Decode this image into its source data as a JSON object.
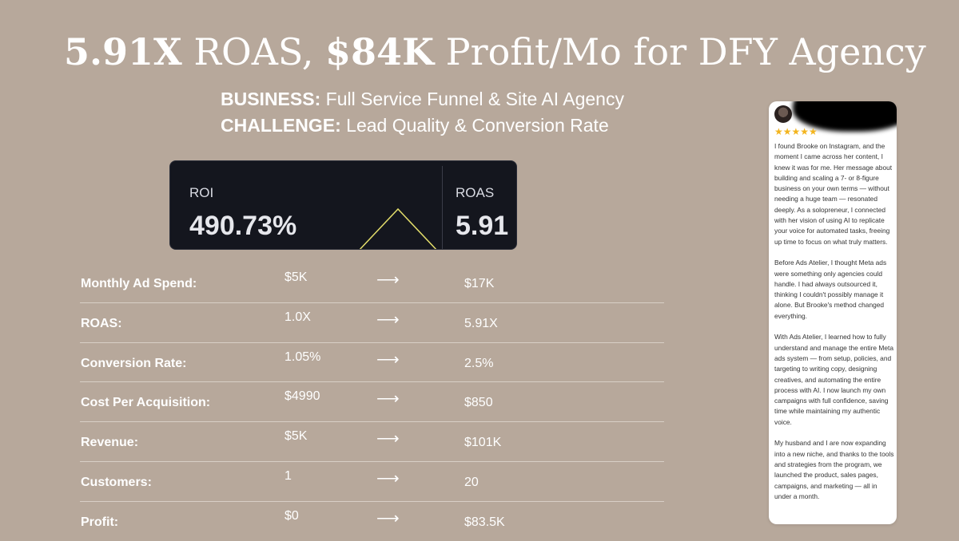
{
  "title": {
    "bold1": "5.91X",
    "mid": " ROAS, ",
    "bold2": "$84K",
    "rest": " Profit/Mo for DFY Agency"
  },
  "business": {
    "label": "BUSINESS:",
    "value": " Full Service Funnel & Site AI Agency"
  },
  "challenge": {
    "label": "CHALLENGE:",
    "value": " Lead Quality & Conversion Rate"
  },
  "metrics": {
    "roi_label": "ROI",
    "roi_value": "490.73%",
    "roas_label": "ROAS",
    "roas_value": "5.91",
    "accent_color": "#e3dd6b"
  },
  "arrow": "⟶",
  "rows": [
    {
      "label": "Monthly Ad Spend:",
      "before": "$5K",
      "after": "$17K"
    },
    {
      "label": "ROAS:",
      "before": "1.0X",
      "after": "5.91X"
    },
    {
      "label": "Conversion Rate:",
      "before": "1.05%",
      "after": "2.5%"
    },
    {
      "label": "Cost Per Acquisition:",
      "before": "$4990",
      "after": "$850"
    },
    {
      "label": "Revenue:",
      "before": "$5K",
      "after": "$101K"
    },
    {
      "label": "Customers:",
      "before": "1",
      "after": "20"
    },
    {
      "label": "Profit:",
      "before": "$0",
      "after": "$83.5K"
    }
  ],
  "review": {
    "rating": 5,
    "stars": "★★★★★",
    "paragraphs": [
      "I found Brooke on Instagram, and the moment I came across her content, I knew it was for me. Her message about building and scaling a 7- or 8-figure business on your own terms — without needing a huge team — resonated deeply. As a solopreneur, I connected with her vision of using AI to replicate your voice for automated tasks, freeing up time to focus on what truly matters.",
      "Before Ads Atelier, I thought Meta ads were something only agencies could handle. I had always outsourced it, thinking I couldn't possibly manage it alone. But Brooke's method changed everything.",
      "With Ads Atelier, I learned how to fully understand and manage the entire Meta ads system — from setup, policies, and targeting to writing copy, designing creatives, and automating the entire process with AI. I now launch my own campaigns with full confidence, saving time while maintaining my authentic voice.",
      "My husband and I are now expanding into a new niche, and thanks to the tools and strategies from the program, we launched the product, sales pages, campaigns, and marketing — all in under a month."
    ]
  }
}
